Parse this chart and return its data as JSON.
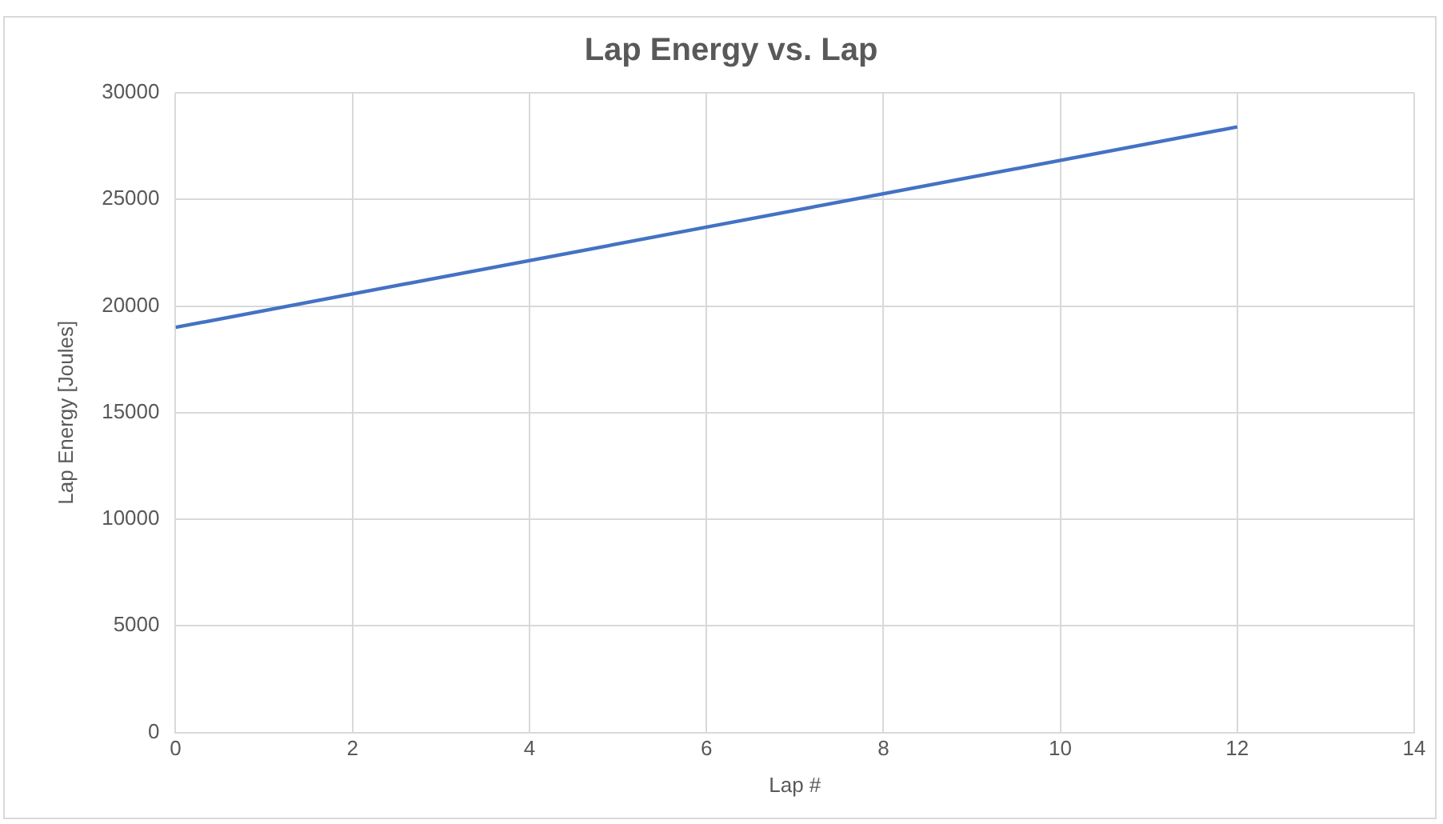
{
  "chart_data": {
    "type": "line",
    "title": "Lap Energy vs. Lap",
    "xlabel": "Lap #",
    "ylabel": "Lap Energy [Joules]",
    "x": [
      0,
      6,
      12
    ],
    "series": [
      {
        "color": "#4472c4",
        "values": [
          19000,
          23700,
          28400
        ]
      }
    ],
    "xlim": [
      0,
      14
    ],
    "xticks": [
      0,
      2,
      4,
      6,
      8,
      10,
      12,
      14
    ],
    "ylim": [
      0,
      30000
    ],
    "yticks": [
      0,
      5000,
      10000,
      15000,
      20000,
      25000,
      30000
    ],
    "grid": true,
    "legend": false,
    "marker": "none",
    "line_style": "solid"
  }
}
